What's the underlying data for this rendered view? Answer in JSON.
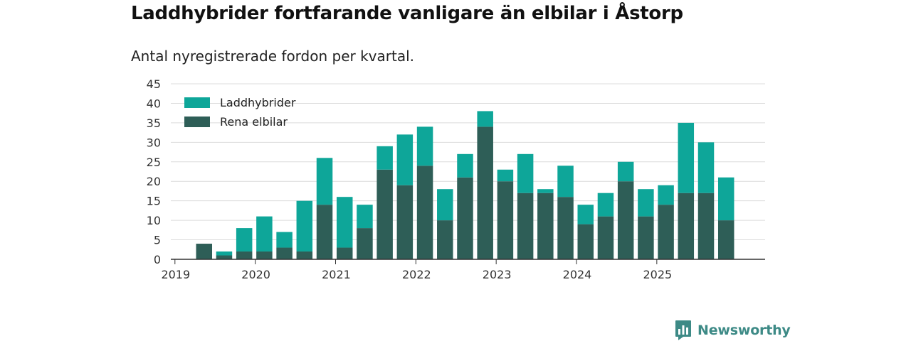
{
  "title": "Laddhybrider fortfarande vanligare än elbilar i Åstorp",
  "subtitle": "Antal nyregistrerade fordon per kvartal.",
  "brand": {
    "name": "Newsworthy",
    "icon": "newsworthy-logo-icon"
  },
  "colors": {
    "laddhybrider": "#0ea699",
    "rena_elbilar": "#2e5e57",
    "grid": "#dcdcdc",
    "axis": "#333333",
    "brand": "#3d8a86"
  },
  "chart_data": {
    "type": "bar",
    "stacked": true,
    "title": "Laddhybrider fortfarande vanligare än elbilar i Åstorp",
    "subtitle": "Antal nyregistrerade fordon per kvartal.",
    "xlabel": "",
    "ylabel": "",
    "ylim": [
      0,
      45
    ],
    "yticks": [
      0,
      5,
      10,
      15,
      20,
      25,
      30,
      35,
      40,
      45
    ],
    "xtick_labels": [
      "2019",
      "2020",
      "2021",
      "2022",
      "2023",
      "2024",
      "2025"
    ],
    "categories": [
      "2019 Q1",
      "2019 Q2",
      "2019 Q3",
      "2019 Q4",
      "2020 Q1",
      "2020 Q2",
      "2020 Q3",
      "2020 Q4",
      "2021 Q1",
      "2021 Q2",
      "2021 Q3",
      "2021 Q4",
      "2022 Q1",
      "2022 Q2",
      "2022 Q3",
      "2022 Q4",
      "2023 Q1",
      "2023 Q2",
      "2023 Q3",
      "2023 Q4",
      "2024 Q1",
      "2024 Q2",
      "2024 Q3",
      "2024 Q4",
      "2025 Q1",
      "2025 Q2",
      "2025 Q3",
      "2025 Q4"
    ],
    "series": [
      {
        "name": "Rena elbilar",
        "values": [
          0,
          4,
          1,
          2,
          2,
          3,
          2,
          14,
          3,
          8,
          23,
          19,
          24,
          10,
          21,
          34,
          20,
          17,
          17,
          16,
          9,
          11,
          20,
          11,
          14,
          17,
          17,
          10
        ]
      },
      {
        "name": "Laddhybrider",
        "values": [
          0,
          0,
          1,
          6,
          9,
          4,
          13,
          12,
          13,
          6,
          6,
          13,
          10,
          8,
          6,
          4,
          3,
          10,
          1,
          8,
          5,
          6,
          5,
          7,
          5,
          18,
          13,
          11
        ]
      }
    ],
    "legend": [
      "Laddhybrider",
      "Rena elbilar"
    ],
    "legend_position": "top-left",
    "grid": true
  }
}
